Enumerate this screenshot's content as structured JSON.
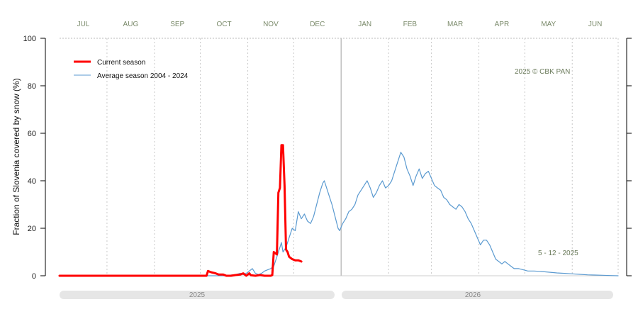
{
  "chart_data": {
    "type": "line",
    "ylabel": "Fraction of  Slovenia  covered by snow (%)",
    "ylim": [
      0,
      100
    ],
    "yticks": [
      0,
      20,
      40,
      60,
      80,
      100
    ],
    "months": [
      "JUL",
      "AUG",
      "SEP",
      "OCT",
      "NOV",
      "DEC",
      "JAN",
      "FEB",
      "MAR",
      "APR",
      "MAY",
      "JUN"
    ],
    "years": [
      "2025",
      "2026"
    ],
    "x_unit": "days since 1 July",
    "xlim": [
      0,
      365
    ],
    "grid": true,
    "legend_position": "top-left",
    "copyright": "2025  © CBK PAN",
    "date_note": "5 - 12 - 2025",
    "series": [
      {
        "name": "Current season",
        "color": "#ff0000",
        "points": [
          [
            0,
            0
          ],
          [
            96,
            0
          ],
          [
            97,
            2
          ],
          [
            99,
            1.5
          ],
          [
            102,
            1
          ],
          [
            104,
            0.5
          ],
          [
            107,
            0.5
          ],
          [
            109,
            0
          ],
          [
            112,
            0
          ],
          [
            115,
            0.3
          ],
          [
            118,
            0.5
          ],
          [
            120,
            1
          ],
          [
            122,
            0
          ],
          [
            124,
            1
          ],
          [
            125,
            0.2
          ],
          [
            128,
            0
          ],
          [
            131,
            0.3
          ],
          [
            134,
            0
          ],
          [
            138,
            0
          ],
          [
            139,
            0.3
          ],
          [
            140,
            10
          ],
          [
            142,
            9
          ],
          [
            143,
            35
          ],
          [
            144,
            37
          ],
          [
            145,
            55
          ],
          [
            146,
            55
          ],
          [
            147,
            38
          ],
          [
            148,
            11
          ],
          [
            149,
            10
          ],
          [
            150,
            8
          ],
          [
            152,
            7
          ],
          [
            154,
            6.5
          ],
          [
            156,
            6.5
          ],
          [
            158,
            6
          ]
        ]
      },
      {
        "name": "Average season 2004 - 2024",
        "color": "#5b9ad0",
        "points": [
          [
            0,
            0
          ],
          [
            100,
            0
          ],
          [
            108,
            0
          ],
          [
            112,
            0.3
          ],
          [
            115,
            0.5
          ],
          [
            118,
            1
          ],
          [
            120,
            0.5
          ],
          [
            122,
            1
          ],
          [
            124,
            2
          ],
          [
            126,
            3
          ],
          [
            128,
            1
          ],
          [
            130,
            0.5
          ],
          [
            132,
            1
          ],
          [
            134,
            2
          ],
          [
            136,
            2.5
          ],
          [
            138,
            3
          ],
          [
            140,
            4
          ],
          [
            142,
            8
          ],
          [
            144,
            12
          ],
          [
            145,
            14
          ],
          [
            146,
            10
          ],
          [
            148,
            12
          ],
          [
            150,
            16
          ],
          [
            152,
            20
          ],
          [
            154,
            19
          ],
          [
            156,
            27
          ],
          [
            158,
            24
          ],
          [
            160,
            26
          ],
          [
            162,
            23
          ],
          [
            164,
            22
          ],
          [
            166,
            25
          ],
          [
            168,
            30
          ],
          [
            170,
            35
          ],
          [
            172,
            39
          ],
          [
            173,
            40
          ],
          [
            175,
            36
          ],
          [
            177,
            32
          ],
          [
            178,
            30
          ],
          [
            180,
            25
          ],
          [
            182,
            20
          ],
          [
            183,
            19
          ],
          [
            185,
            22
          ],
          [
            187,
            24
          ],
          [
            189,
            27
          ],
          [
            191,
            28
          ],
          [
            193,
            30
          ],
          [
            195,
            34
          ],
          [
            197,
            36
          ],
          [
            199,
            38
          ],
          [
            201,
            40
          ],
          [
            203,
            37
          ],
          [
            205,
            33
          ],
          [
            207,
            35
          ],
          [
            209,
            38
          ],
          [
            211,
            40
          ],
          [
            213,
            37
          ],
          [
            215,
            38
          ],
          [
            217,
            40
          ],
          [
            219,
            44
          ],
          [
            221,
            48
          ],
          [
            223,
            52
          ],
          [
            225,
            50
          ],
          [
            227,
            45
          ],
          [
            229,
            42
          ],
          [
            231,
            38
          ],
          [
            233,
            42
          ],
          [
            235,
            45
          ],
          [
            237,
            41
          ],
          [
            239,
            43
          ],
          [
            241,
            44
          ],
          [
            243,
            41
          ],
          [
            245,
            38
          ],
          [
            247,
            37
          ],
          [
            249,
            36
          ],
          [
            251,
            33
          ],
          [
            253,
            32
          ],
          [
            255,
            30
          ],
          [
            257,
            29
          ],
          [
            259,
            28
          ],
          [
            261,
            30
          ],
          [
            263,
            29
          ],
          [
            265,
            27
          ],
          [
            267,
            24
          ],
          [
            269,
            22
          ],
          [
            271,
            19
          ],
          [
            273,
            16
          ],
          [
            275,
            13
          ],
          [
            277,
            15
          ],
          [
            279,
            15
          ],
          [
            281,
            13
          ],
          [
            283,
            10
          ],
          [
            285,
            7
          ],
          [
            287,
            6
          ],
          [
            289,
            5
          ],
          [
            291,
            6
          ],
          [
            293,
            5
          ],
          [
            295,
            4
          ],
          [
            297,
            3
          ],
          [
            300,
            3
          ],
          [
            303,
            2.5
          ],
          [
            306,
            2
          ],
          [
            310,
            2
          ],
          [
            315,
            1.8
          ],
          [
            320,
            1.5
          ],
          [
            325,
            1.2
          ],
          [
            330,
            1
          ],
          [
            335,
            0.8
          ],
          [
            340,
            0.6
          ],
          [
            345,
            0.4
          ],
          [
            350,
            0.3
          ],
          [
            355,
            0.2
          ],
          [
            360,
            0.1
          ],
          [
            365,
            0
          ]
        ]
      }
    ]
  }
}
